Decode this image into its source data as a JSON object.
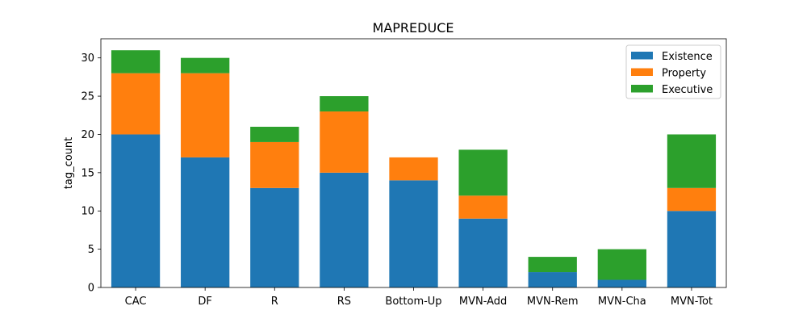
{
  "chart_data": {
    "type": "bar",
    "stacked": true,
    "title": "MAPREDUCE",
    "xlabel": "",
    "ylabel": "tag_count",
    "ylim": [
      0,
      32.5
    ],
    "yticks": [
      0,
      5,
      10,
      15,
      20,
      25,
      30
    ],
    "categories": [
      "CAC",
      "DF",
      "R",
      "RS",
      "Bottom-Up",
      "MVN-Add",
      "MVN-Rem",
      "MVN-Cha",
      "MVN-Tot"
    ],
    "series": [
      {
        "name": "Existence",
        "color": "#1f77b4",
        "values": [
          20,
          17,
          13,
          15,
          14,
          9,
          2,
          1,
          10
        ]
      },
      {
        "name": "Property",
        "color": "#ff7f0e",
        "values": [
          8,
          11,
          6,
          8,
          3,
          3,
          0,
          0,
          3
        ]
      },
      {
        "name": "Executive",
        "color": "#2ca02c",
        "values": [
          3,
          2,
          2,
          2,
          0,
          6,
          2,
          4,
          7
        ]
      }
    ],
    "legend_position": "top-right",
    "grid": false
  }
}
